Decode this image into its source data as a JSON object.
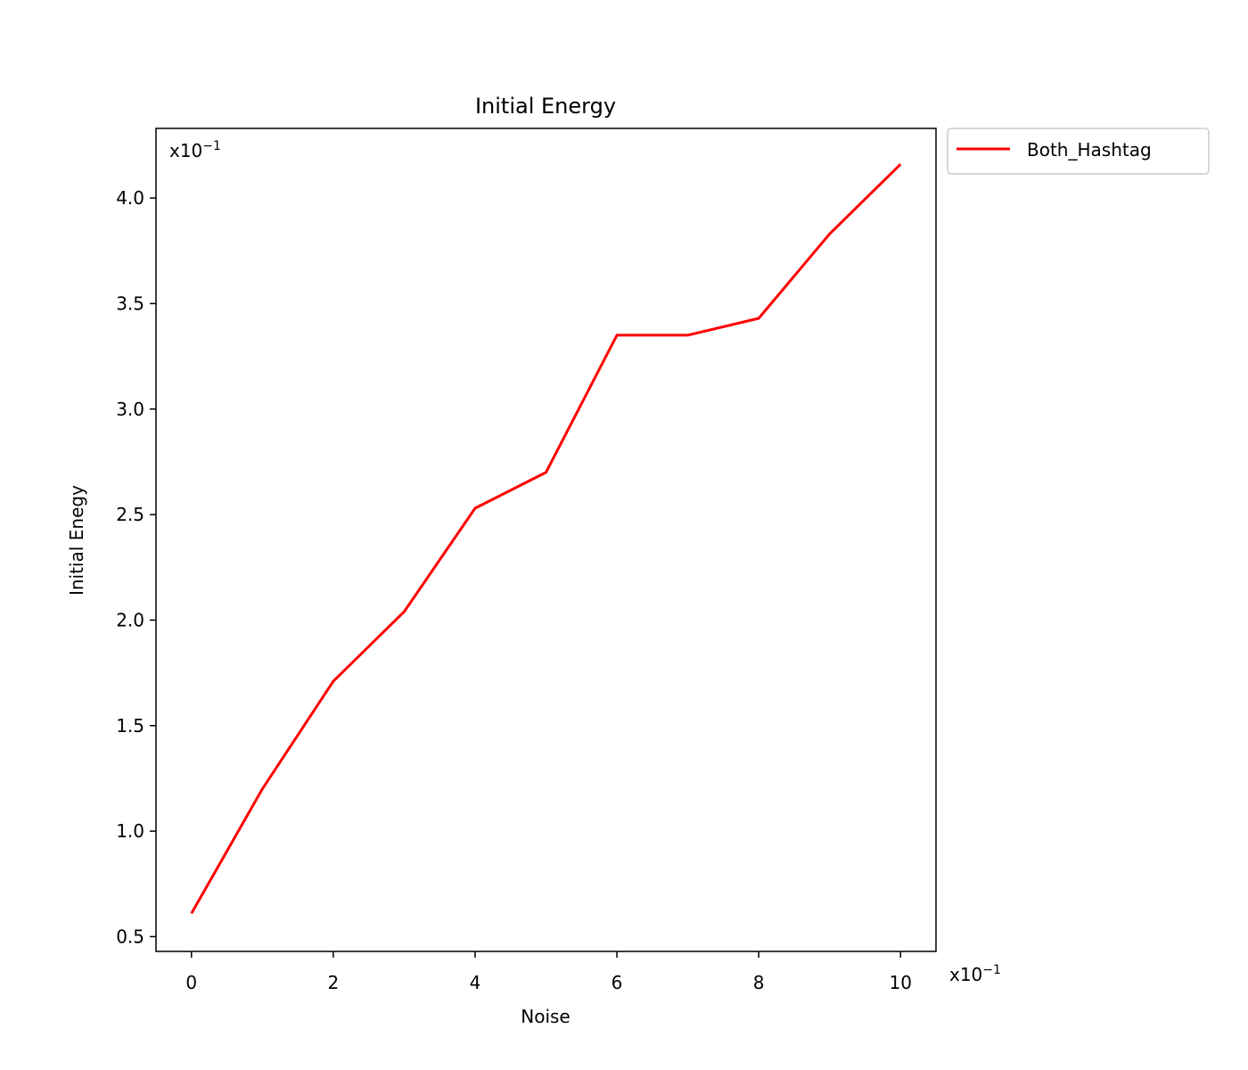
{
  "chart_data": {
    "type": "line",
    "title": "Initial Energy",
    "xlabel": "Noise",
    "ylabel": "Initial Enegy",
    "x_offset_text": "x10",
    "y_offset_text": "x10",
    "offset_exponent": "−1",
    "x": [
      0,
      1,
      2,
      3,
      4,
      5,
      6,
      7,
      8,
      9,
      10
    ],
    "x_ticks": [
      0,
      2,
      4,
      6,
      8,
      10
    ],
    "x_tick_labels": [
      "0",
      "2",
      "4",
      "6",
      "8",
      "10"
    ],
    "y_ticks": [
      0.5,
      1.0,
      1.5,
      2.0,
      2.5,
      3.0,
      3.5,
      4.0
    ],
    "y_tick_labels": [
      "0.5",
      "1.0",
      "1.5",
      "2.0",
      "2.5",
      "3.0",
      "3.5",
      "4.0"
    ],
    "xlim": [
      -0.5,
      10.5
    ],
    "ylim": [
      0.43,
      4.33
    ],
    "series": [
      {
        "name": "Both_Hashtag",
        "color": "#ff0000",
        "values": [
          0.61,
          1.2,
          1.71,
          2.04,
          2.53,
          2.7,
          3.35,
          3.35,
          3.43,
          3.83,
          4.16
        ]
      }
    ],
    "legend": "outside-top-right",
    "grid": false
  }
}
